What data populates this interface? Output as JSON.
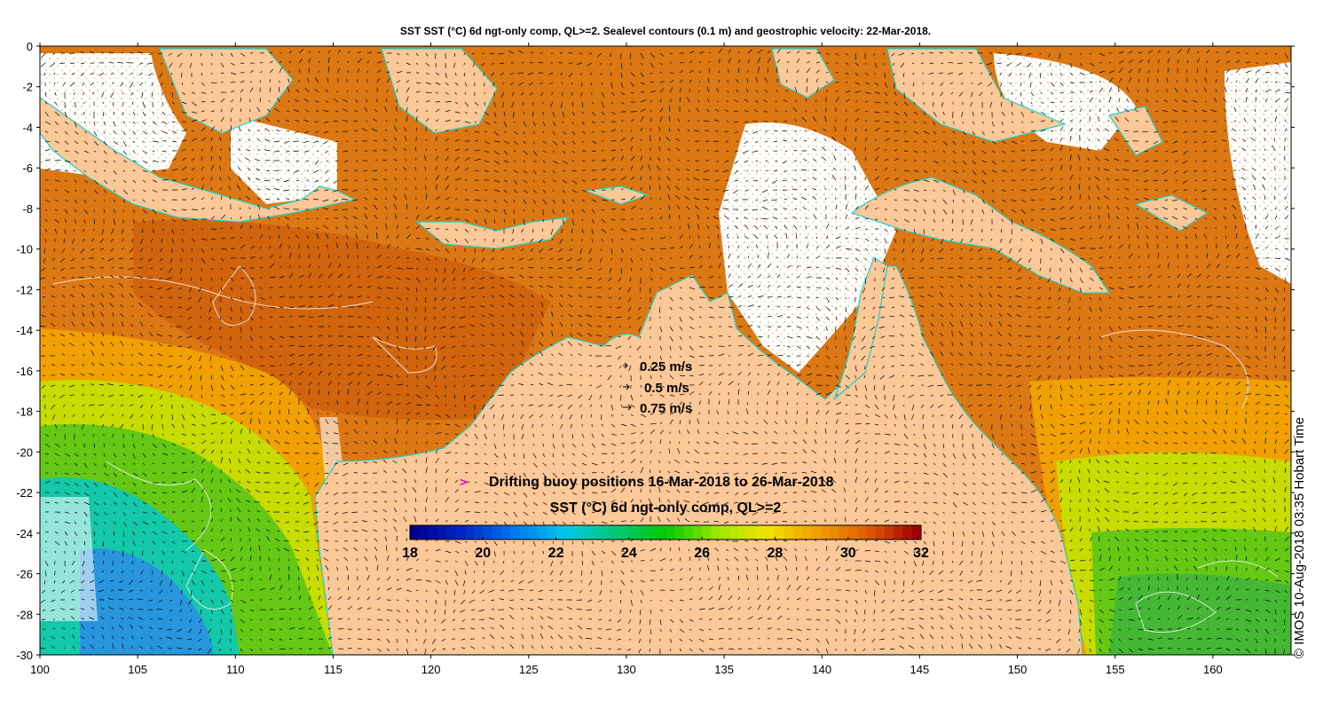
{
  "title": "SST SST (°C) 6d ngt-only comp, QL>=2. Sealevel contours (0.1 m) and geostrophic velocity: 22-Mar-2018.",
  "y_ticks": [
    "0",
    "-2",
    "-4",
    "-6",
    "-8",
    "-10",
    "-12",
    "-14",
    "-16",
    "-18",
    "-20",
    "-22",
    "-24",
    "-26",
    "-28",
    "-30"
  ],
  "x_ticks": [
    "100",
    "105",
    "110",
    "115",
    "120",
    "125",
    "130",
    "135",
    "140",
    "145",
    "150",
    "155",
    "160"
  ],
  "lon_range": [
    100,
    164
  ],
  "lat_range": [
    -30,
    0
  ],
  "velocity_legend": {
    "items": [
      {
        "label": "0.25 m/s",
        "speed": 0.25
      },
      {
        "label": "0.5 m/s",
        "speed": 0.5
      },
      {
        "label": "0.75 m/s",
        "speed": 0.75
      }
    ]
  },
  "buoy_legend": {
    "symbol": ">",
    "label": "Drifting buoy positions 16-Mar-2018 to 26-Mar-2018",
    "color": "#e000e0"
  },
  "colorbar": {
    "title": "SST (°C) 6d ngt-only comp, QL>=2",
    "ticks": [
      "18",
      "20",
      "22",
      "24",
      "26",
      "28",
      "30",
      "32"
    ],
    "range": [
      18,
      32
    ],
    "colormap": [
      "#00008c",
      "#0028c8",
      "#0078f0",
      "#00c8e6",
      "#00c878",
      "#00c800",
      "#96e600",
      "#f0e600",
      "#f0a000",
      "#e06000",
      "#a00000"
    ]
  },
  "colors": {
    "land": "#fcc898",
    "sst_warm": "#dc7814",
    "sst_hot": "#c8500a",
    "sst_mid": "#f0a000",
    "sst_green": "#64c814",
    "sst_cyan": "#14c8aa",
    "sst_blue": "#2896dc",
    "coast_cyan": "#20d0c8",
    "contour": "#f0f0f0",
    "arrow": "#000000"
  },
  "copyright": "© IMOS 10-Aug-2018 03:35 Hobart Time"
}
